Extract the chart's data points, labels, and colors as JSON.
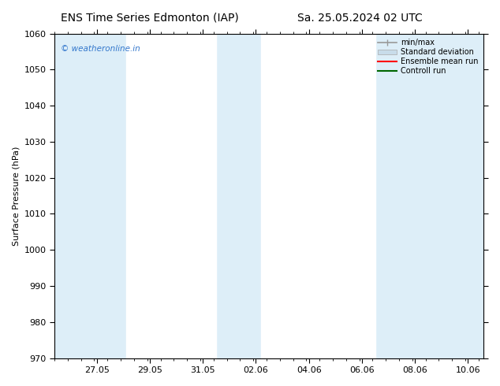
{
  "title_left": "ENS Time Series Edmonton (IAP)",
  "title_right": "Sa. 25.05.2024 02 UTC",
  "ylabel": "Surface Pressure (hPa)",
  "ylim": [
    970,
    1060
  ],
  "yticks": [
    970,
    980,
    990,
    1000,
    1010,
    1020,
    1030,
    1040,
    1050,
    1060
  ],
  "xtick_labels": [
    "27.05",
    "29.05",
    "31.05",
    "02.06",
    "04.06",
    "06.06",
    "08.06",
    "10.06"
  ],
  "bg_color": "#ffffff",
  "plot_bg_color": "#ddeef8",
  "white_band_color": "#ffffff",
  "shaded_band_color": "#ddeef8",
  "watermark_text": "© weatheronline.in",
  "watermark_color": "#3377cc",
  "legend_items": [
    {
      "label": "min/max",
      "color": "#999999",
      "lw": 1.2
    },
    {
      "label": "Standard deviation",
      "color": "#c8dcea",
      "lw": 6
    },
    {
      "label": "Ensemble mean run",
      "color": "#ff0000",
      "lw": 1.5
    },
    {
      "label": "Controll run",
      "color": "#006600",
      "lw": 1.5
    }
  ],
  "title_fontsize": 10,
  "axis_label_fontsize": 8,
  "tick_fontsize": 8
}
